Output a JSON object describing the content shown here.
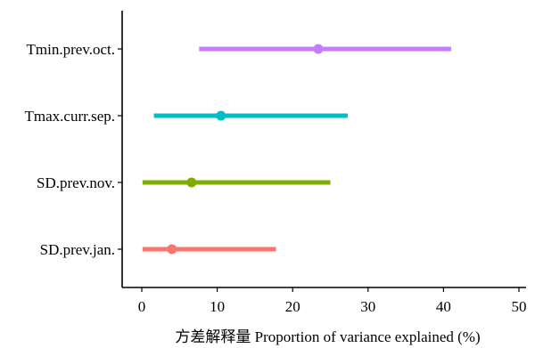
{
  "chart_data": {
    "type": "scatter",
    "subtype": "point-interval",
    "xlabel": "方差解释量 Proportion of variance explained (%)",
    "xlim": [
      0,
      50
    ],
    "x_ticks": [
      0,
      10,
      20,
      30,
      40,
      50
    ],
    "grid": false,
    "legend": "none",
    "categories": [
      "Tmin.prev.oct.",
      "Tmax.curr.sep.",
      "SD.prev.nov.",
      "SD.prev.jan."
    ],
    "series": [
      {
        "category": "Tmin.prev.oct.",
        "point": 23.4,
        "low": 7.6,
        "high": 41.0,
        "color": "#c77cff"
      },
      {
        "category": "Tmax.curr.sep.",
        "point": 10.5,
        "low": 1.6,
        "high": 27.3,
        "color": "#00bfc4"
      },
      {
        "category": "SD.prev.nov.",
        "point": 6.6,
        "low": 0.1,
        "high": 25.0,
        "color": "#7cae00"
      },
      {
        "category": "SD.prev.jan.",
        "point": 4.0,
        "low": 0.1,
        "high": 17.8,
        "color": "#f8766d"
      }
    ]
  }
}
